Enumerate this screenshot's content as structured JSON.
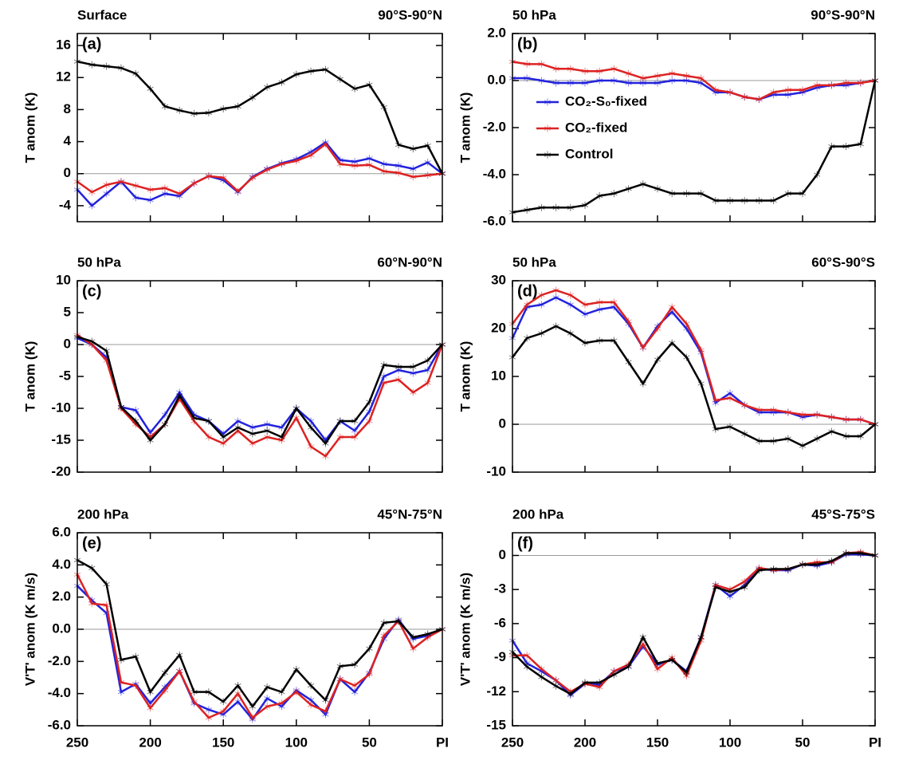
{
  "chart_data": [
    {
      "type": "line",
      "title": "Surface",
      "subtitle": "90°S-90°N",
      "panel_label": "(a)",
      "ylabel": "T anom (K)",
      "x": [
        250,
        240,
        230,
        220,
        210,
        200,
        190,
        180,
        170,
        160,
        150,
        140,
        130,
        120,
        110,
        100,
        90,
        80,
        70,
        60,
        50,
        40,
        30,
        20,
        10,
        0
      ],
      "xlim": [
        250,
        0
      ],
      "xticks": [
        250,
        200,
        150,
        100,
        50,
        0
      ],
      "xticklabels": false,
      "ylim": [
        -6,
        17.5
      ],
      "yticks": [
        -4,
        0,
        4,
        8,
        12,
        16
      ],
      "series": [
        {
          "color": "#2222dd",
          "values": [
            -2,
            -4,
            -2.5,
            -1,
            -3,
            -3.3,
            -2.5,
            -2.8,
            -1.2,
            -0.3,
            -0.8,
            -2.3,
            -0.4,
            0.6,
            1.3,
            1.8,
            2.7,
            3.9,
            1.7,
            1.5,
            1.9,
            1.2,
            1.0,
            0.6,
            1.4,
            0
          ]
        },
        {
          "color": "#dd2222",
          "values": [
            -1,
            -2.3,
            -1.4,
            -1,
            -1.5,
            -2,
            -1.8,
            -2.5,
            -1.2,
            -0.3,
            -0.5,
            -2.2,
            -0.5,
            0.5,
            1.2,
            1.6,
            2.3,
            3.7,
            1.2,
            1,
            1.1,
            0.3,
            0.1,
            -0.4,
            -0.2,
            0
          ]
        },
        {
          "color": "#000000",
          "values": [
            14,
            13.6,
            13.4,
            13.2,
            12.5,
            10.6,
            8.4,
            7.9,
            7.5,
            7.6,
            8.1,
            8.4,
            9.5,
            10.8,
            11.4,
            12.4,
            12.8,
            13,
            11.8,
            10.6,
            11.1,
            8.3,
            3.6,
            3.1,
            3.5,
            0
          ]
        }
      ]
    },
    {
      "type": "line",
      "title": "50 hPa",
      "subtitle": "90°S-90°N",
      "panel_label": "(b)",
      "ylabel": "T anom (K)",
      "x": [
        250,
        240,
        230,
        220,
        210,
        200,
        190,
        180,
        170,
        160,
        150,
        140,
        130,
        120,
        110,
        100,
        90,
        80,
        70,
        60,
        50,
        40,
        30,
        20,
        10,
        0
      ],
      "xlim": [
        250,
        0
      ],
      "xticks": [
        250,
        200,
        150,
        100,
        50,
        0
      ],
      "xticklabels": false,
      "ylim": [
        -6,
        2
      ],
      "yticks": [
        {
          "value": -6,
          "label": "-6.0"
        },
        {
          "value": -4,
          "label": "-4.0"
        },
        {
          "value": -2,
          "label": "-2.0"
        },
        {
          "value": 0,
          "label": "0.0"
        },
        {
          "value": 2,
          "label": "2.0"
        }
      ],
      "legend": true,
      "series": [
        {
          "name": "CO₂-S₀-fixed",
          "color": "#2222dd",
          "values": [
            0.1,
            0.1,
            0,
            -0.1,
            -0.1,
            -0.1,
            0,
            0,
            -0.1,
            -0.1,
            -0.1,
            0,
            0,
            -0.1,
            -0.5,
            -0.5,
            -0.7,
            -0.8,
            -0.6,
            -0.6,
            -0.5,
            -0.3,
            -0.2,
            -0.2,
            -0.1,
            0
          ]
        },
        {
          "name": "CO₂-fixed",
          "color": "#dd2222",
          "values": [
            0.8,
            0.7,
            0.7,
            0.5,
            0.5,
            0.4,
            0.4,
            0.5,
            0.3,
            0.1,
            0.2,
            0.3,
            0.2,
            0.1,
            -0.4,
            -0.5,
            -0.7,
            -0.8,
            -0.5,
            -0.4,
            -0.4,
            -0.2,
            -0.2,
            -0.1,
            -0.1,
            0
          ]
        },
        {
          "name": "Control",
          "color": "#000000",
          "values": [
            -5.6,
            -5.5,
            -5.4,
            -5.4,
            -5.4,
            -5.3,
            -4.9,
            -4.8,
            -4.6,
            -4.4,
            -4.6,
            -4.8,
            -4.8,
            -4.8,
            -5.1,
            -5.1,
            -5.1,
            -5.1,
            -5.1,
            -4.8,
            -4.8,
            -4,
            -2.8,
            -2.8,
            -2.7,
            0
          ]
        }
      ]
    },
    {
      "type": "line",
      "title": "50 hPa",
      "subtitle": "60°N-90°N",
      "panel_label": "(c)",
      "ylabel": "T anom (K)",
      "x": [
        250,
        240,
        230,
        220,
        210,
        200,
        190,
        180,
        170,
        160,
        150,
        140,
        130,
        120,
        110,
        100,
        90,
        80,
        70,
        60,
        50,
        40,
        30,
        20,
        10,
        0
      ],
      "xlim": [
        250,
        0
      ],
      "xticks": [
        250,
        200,
        150,
        100,
        50,
        0
      ],
      "xticklabels": false,
      "ylim": [
        -20,
        10
      ],
      "yticks": [
        -20,
        -15,
        -10,
        -5,
        0,
        5,
        10
      ],
      "series": [
        {
          "color": "#2222dd",
          "values": [
            1,
            0,
            -2,
            -9.8,
            -10.3,
            -13.8,
            -11,
            -7.5,
            -11,
            -12,
            -14,
            -12,
            -13,
            -12.5,
            -13,
            -10,
            -12,
            -15,
            -12,
            -13.5,
            -10.5,
            -5,
            -4,
            -4.5,
            -4,
            0
          ]
        },
        {
          "color": "#dd2222",
          "values": [
            1.5,
            0,
            -2.5,
            -10,
            -12.5,
            -14.5,
            -12.5,
            -8.5,
            -12,
            -14.5,
            -15.5,
            -13.5,
            -15.5,
            -14.5,
            -15,
            -11.5,
            -16,
            -17.5,
            -14.5,
            -14.5,
            -12,
            -6,
            -5.5,
            -7.5,
            -6,
            0
          ]
        },
        {
          "color": "#000000",
          "values": [
            1.2,
            0.5,
            -1,
            -9.8,
            -12,
            -15,
            -12.5,
            -8,
            -11.5,
            -12,
            -14.5,
            -13,
            -14,
            -13.5,
            -14.5,
            -10,
            -13,
            -15.5,
            -12,
            -12,
            -9,
            -3.2,
            -3.5,
            -3.5,
            -2.5,
            0
          ]
        }
      ]
    },
    {
      "type": "line",
      "title": "50 hPa",
      "subtitle": "60°S-90°S",
      "panel_label": "(d)",
      "ylabel": "T anom (K)",
      "x": [
        250,
        240,
        230,
        220,
        210,
        200,
        190,
        180,
        170,
        160,
        150,
        140,
        130,
        120,
        110,
        100,
        90,
        80,
        70,
        60,
        50,
        40,
        30,
        20,
        10,
        0
      ],
      "xlim": [
        250,
        0
      ],
      "xticks": [
        250,
        200,
        150,
        100,
        50,
        0
      ],
      "xticklabels": false,
      "ylim": [
        -10,
        30
      ],
      "yticks": [
        -10,
        0,
        10,
        20,
        30
      ],
      "series": [
        {
          "color": "#2222dd",
          "values": [
            18,
            24.5,
            25,
            26.5,
            25,
            23,
            24,
            24.5,
            21,
            16,
            20.5,
            23.5,
            20,
            15,
            4.5,
            6.5,
            4,
            2.5,
            2.5,
            2.5,
            1.5,
            2,
            1.5,
            1,
            1,
            0
          ]
        },
        {
          "color": "#dd2222",
          "values": [
            21,
            25,
            27,
            28,
            27,
            25,
            25.5,
            25.5,
            21.5,
            16,
            20,
            24.5,
            21,
            15.5,
            5,
            5.5,
            4,
            3,
            3,
            2.5,
            2,
            2,
            1.5,
            1,
            1,
            0
          ]
        },
        {
          "color": "#000000",
          "values": [
            14,
            18,
            19,
            20.5,
            19,
            17,
            17.5,
            17.5,
            13,
            8.5,
            13.5,
            17,
            14,
            8.5,
            -1,
            -0.5,
            -2,
            -3.5,
            -3.5,
            -3,
            -4.5,
            -3,
            -1.5,
            -2.5,
            -2.5,
            0
          ]
        }
      ]
    },
    {
      "type": "line",
      "title": "200 hPa",
      "subtitle": "45°N-75°N",
      "panel_label": "(e)",
      "ylabel": "V'T' anom (K m/s)",
      "x": [
        250,
        240,
        230,
        220,
        210,
        200,
        190,
        180,
        170,
        160,
        150,
        140,
        130,
        120,
        110,
        100,
        90,
        80,
        70,
        60,
        50,
        40,
        30,
        20,
        10,
        0
      ],
      "xlim": [
        250,
        0
      ],
      "xticks": [
        250,
        200,
        150,
        100,
        50,
        {
          "value": 0,
          "label": "PI"
        }
      ],
      "xticklabels": true,
      "ylim": [
        -6,
        6
      ],
      "yticks": [
        {
          "value": -6,
          "label": "-6.0"
        },
        {
          "value": -4,
          "label": "-4.0"
        },
        {
          "value": -2,
          "label": "-2.0"
        },
        {
          "value": 0,
          "label": "0.0"
        },
        {
          "value": 2,
          "label": "2.0"
        },
        {
          "value": 4,
          "label": "4.0"
        },
        {
          "value": 6,
          "label": "6.0"
        }
      ],
      "series": [
        {
          "color": "#2222dd",
          "values": [
            2.7,
            1.8,
            1,
            -3.9,
            -3.4,
            -4.6,
            -3.6,
            -2.6,
            -4.6,
            -5,
            -5.3,
            -4.5,
            -5.6,
            -4.3,
            -4.8,
            -3.8,
            -4.4,
            -5.3,
            -3.1,
            -3.9,
            -2.7,
            -0.6,
            0.6,
            -0.6,
            -0.4,
            0
          ]
        },
        {
          "color": "#dd2222",
          "values": [
            3.4,
            1.6,
            1.5,
            -3.3,
            -3.5,
            -4.9,
            -3.8,
            -2.6,
            -4.5,
            -5.5,
            -5.1,
            -4,
            -5.5,
            -4.8,
            -4.6,
            -3.9,
            -4.7,
            -5.1,
            -3.1,
            -3.5,
            -2.8,
            -0.4,
            0.5,
            -1.2,
            -0.5,
            0
          ]
        },
        {
          "color": "#000000",
          "values": [
            4.3,
            3.8,
            2.8,
            -1.9,
            -1.7,
            -3.9,
            -2.7,
            -1.6,
            -3.9,
            -3.9,
            -4.5,
            -3.5,
            -4.8,
            -3.6,
            -3.9,
            -2.5,
            -3.5,
            -4.4,
            -2.3,
            -2.2,
            -1.2,
            0.4,
            0.5,
            -0.5,
            -0.3,
            0
          ]
        }
      ]
    },
    {
      "type": "line",
      "title": "200 hPa",
      "subtitle": "45°S-75°S",
      "panel_label": "(f)",
      "ylabel": "V'T' anom (K m/s)",
      "x": [
        250,
        240,
        230,
        220,
        210,
        200,
        190,
        180,
        170,
        160,
        150,
        140,
        130,
        120,
        110,
        100,
        90,
        80,
        70,
        60,
        50,
        40,
        30,
        20,
        10,
        0
      ],
      "xlim": [
        250,
        0
      ],
      "xticks": [
        250,
        200,
        150,
        100,
        50,
        {
          "value": 0,
          "label": "PI"
        }
      ],
      "xticklabels": true,
      "ylim": [
        -15,
        2
      ],
      "yticks": [
        -15,
        -12,
        -9,
        -6,
        -3,
        0
      ],
      "series": [
        {
          "color": "#2222dd",
          "values": [
            -7.5,
            -9.5,
            -10.2,
            -11,
            -12.3,
            -11.3,
            -11.4,
            -10.2,
            -9.8,
            -8,
            -9.6,
            -9.2,
            -10.2,
            -7.2,
            -2.6,
            -3.6,
            -2.6,
            -1.2,
            -1.3,
            -1.3,
            -0.8,
            -0.9,
            -0.6,
            0.1,
            0.1,
            0
          ]
        },
        {
          "color": "#dd2222",
          "values": [
            -8.8,
            -8.8,
            -10,
            -11,
            -12,
            -11.3,
            -11.6,
            -10.2,
            -9.6,
            -7.8,
            -10,
            -9,
            -10.6,
            -7.5,
            -2.6,
            -3,
            -2.3,
            -1.1,
            -1.3,
            -1.2,
            -0.8,
            -0.6,
            -0.6,
            0.2,
            0.3,
            0
          ]
        },
        {
          "color": "#000000",
          "values": [
            -8.5,
            -9.8,
            -10.7,
            -11.5,
            -12.2,
            -11.2,
            -11.2,
            -10.5,
            -9.8,
            -7.2,
            -9.5,
            -9.2,
            -10.3,
            -7.2,
            -2.8,
            -3.2,
            -2.8,
            -1.3,
            -1.2,
            -1.2,
            -0.8,
            -0.8,
            -0.5,
            0.2,
            0.2,
            0
          ]
        }
      ]
    }
  ]
}
